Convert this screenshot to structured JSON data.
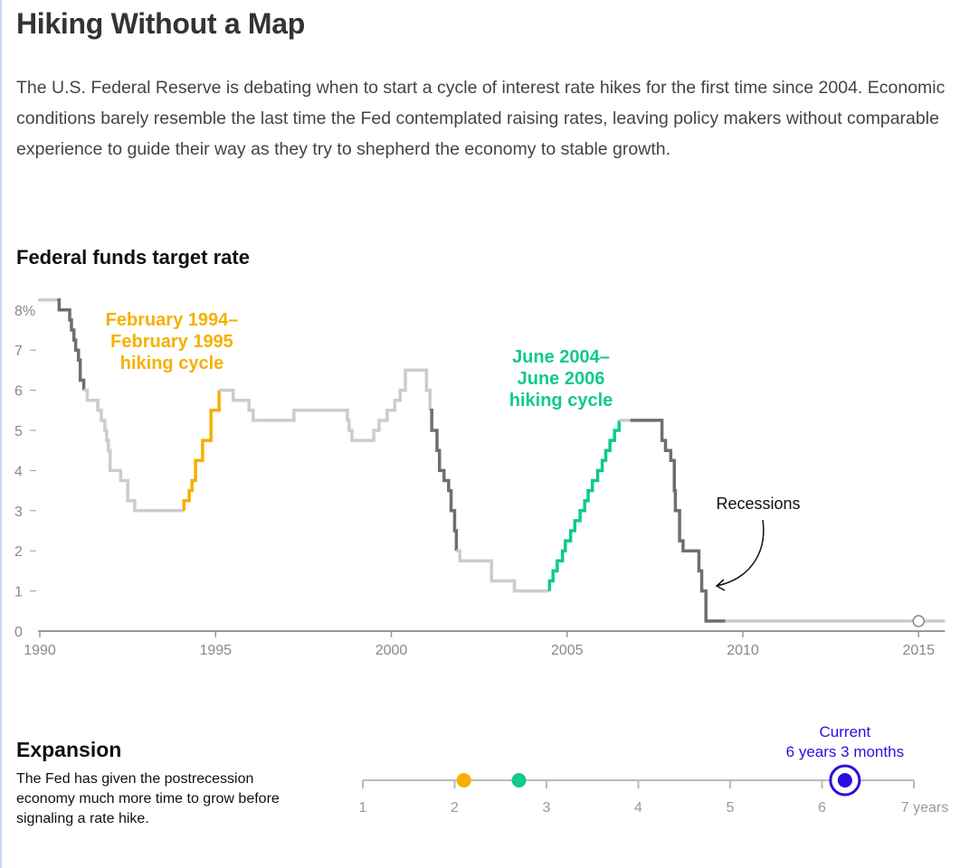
{
  "headline": "Hiking Without a Map",
  "dek": "The U.S. Federal Reserve is debating when to start a cycle of interest rate hikes for the first time since 2004. Economic conditions barely resemble the last time the Fed contemplated raising rates, leaving policy makers without comparable experience to guide their way as they try to shepherd the economy to stable growth.",
  "colors": {
    "normal": "#cccccc",
    "recession": "#6e6e6e",
    "hike_1994": "#f5b000",
    "hike_2004": "#10c98f",
    "current": "#2a0ee0",
    "axis": "#999999"
  },
  "chart_data": [
    {
      "type": "line",
      "step": true,
      "title": "Federal funds target rate",
      "xlim": [
        1990,
        2015.75
      ],
      "ylim": [
        0,
        8.25
      ],
      "x_ticks": [
        "1990",
        "1995",
        "2000",
        "2005",
        "2010",
        "2015"
      ],
      "y_ticks": [
        "0",
        "1",
        "2",
        "3",
        "4",
        "5",
        "6",
        "7",
        "8%"
      ],
      "annotations": [
        {
          "text_lines": [
            "February 1994–",
            "February 1995",
            "hiking cycle"
          ],
          "color": "hike_1994"
        },
        {
          "text_lines": [
            "June 2004–",
            "June 2006",
            "hiking cycle"
          ],
          "color": "hike_2004"
        },
        {
          "text_lines": [
            "Recessions"
          ],
          "color": "recession"
        }
      ],
      "segments": [
        {
          "style": "normal",
          "points": [
            [
              1989.95,
              8.25
            ],
            [
              1990.5,
              8.25
            ]
          ]
        },
        {
          "style": "recession",
          "points": [
            [
              1990.5,
              8.25
            ],
            [
              1990.55,
              8.0
            ],
            [
              1990.85,
              7.75
            ],
            [
              1990.9,
              7.5
            ],
            [
              1990.97,
              7.25
            ],
            [
              1991.02,
              7.0
            ],
            [
              1991.1,
              6.75
            ],
            [
              1991.15,
              6.25
            ],
            [
              1991.25,
              6.0
            ]
          ]
        },
        {
          "style": "normal",
          "points": [
            [
              1991.25,
              6.0
            ],
            [
              1991.35,
              5.75
            ],
            [
              1991.65,
              5.5
            ],
            [
              1991.75,
              5.25
            ],
            [
              1991.85,
              5.0
            ],
            [
              1991.9,
              4.75
            ],
            [
              1991.95,
              4.5
            ],
            [
              1992.0,
              4.0
            ],
            [
              1992.3,
              3.75
            ],
            [
              1992.5,
              3.25
            ],
            [
              1992.7,
              3.0
            ],
            [
              1994.1,
              3.0
            ]
          ]
        },
        {
          "style": "hike_1994",
          "points": [
            [
              1994.1,
              3.0
            ],
            [
              1994.1,
              3.25
            ],
            [
              1994.25,
              3.5
            ],
            [
              1994.33,
              3.75
            ],
            [
              1994.43,
              4.25
            ],
            [
              1994.63,
              4.75
            ],
            [
              1994.87,
              5.5
            ],
            [
              1995.1,
              6.0
            ]
          ]
        },
        {
          "style": "normal",
          "points": [
            [
              1995.1,
              6.0
            ],
            [
              1995.5,
              5.75
            ],
            [
              1995.95,
              5.5
            ],
            [
              1996.07,
              5.25
            ],
            [
              1997.23,
              5.5
            ],
            [
              1998.75,
              5.25
            ],
            [
              1998.8,
              5.0
            ],
            [
              1998.88,
              4.75
            ],
            [
              1999.5,
              5.0
            ],
            [
              1999.65,
              5.25
            ],
            [
              1999.88,
              5.5
            ],
            [
              2000.1,
              5.75
            ],
            [
              2000.25,
              6.0
            ],
            [
              2000.4,
              6.5
            ],
            [
              2001.0,
              6.0
            ],
            [
              2001.1,
              5.5
            ]
          ]
        },
        {
          "style": "recession",
          "points": [
            [
              2001.1,
              5.5
            ],
            [
              2001.15,
              5.0
            ],
            [
              2001.3,
              4.5
            ],
            [
              2001.37,
              4.0
            ],
            [
              2001.5,
              3.75
            ],
            [
              2001.63,
              3.5
            ],
            [
              2001.7,
              3.0
            ],
            [
              2001.8,
              2.5
            ],
            [
              2001.85,
              2.0
            ]
          ]
        },
        {
          "style": "normal",
          "points": [
            [
              2001.85,
              2.0
            ],
            [
              2001.95,
              1.75
            ],
            [
              2002.85,
              1.25
            ],
            [
              2003.5,
              1.0
            ],
            [
              2004.5,
              1.0
            ]
          ]
        },
        {
          "style": "hike_2004",
          "points": [
            [
              2004.5,
              1.0
            ],
            [
              2004.5,
              1.25
            ],
            [
              2004.6,
              1.5
            ],
            [
              2004.72,
              1.75
            ],
            [
              2004.87,
              2.0
            ],
            [
              2004.95,
              2.25
            ],
            [
              2005.1,
              2.5
            ],
            [
              2005.22,
              2.75
            ],
            [
              2005.37,
              3.0
            ],
            [
              2005.5,
              3.25
            ],
            [
              2005.6,
              3.5
            ],
            [
              2005.72,
              3.75
            ],
            [
              2005.87,
              4.0
            ],
            [
              2006.0,
              4.25
            ],
            [
              2006.1,
              4.5
            ],
            [
              2006.22,
              4.75
            ],
            [
              2006.35,
              5.0
            ],
            [
              2006.48,
              5.25
            ]
          ]
        },
        {
          "style": "normal",
          "points": [
            [
              2006.48,
              5.25
            ],
            [
              2006.8,
              5.25
            ]
          ]
        },
        {
          "style": "recession",
          "points": [
            [
              2006.8,
              5.25
            ],
            [
              2007.65,
              5.25
            ],
            [
              2007.7,
              4.75
            ],
            [
              2007.8,
              4.5
            ],
            [
              2007.95,
              4.25
            ],
            [
              2008.05,
              3.5
            ],
            [
              2008.08,
              3.0
            ],
            [
              2008.2,
              2.25
            ],
            [
              2008.3,
              2.0
            ],
            [
              2008.75,
              1.5
            ],
            [
              2008.83,
              1.0
            ],
            [
              2008.95,
              0.25
            ],
            [
              2009.5,
              0.25
            ]
          ]
        },
        {
          "style": "normal",
          "points": [
            [
              2009.5,
              0.25
            ],
            [
              2015.75,
              0.25
            ]
          ]
        }
      ],
      "marker": {
        "x": 2015.0,
        "y": 0.25
      }
    },
    {
      "type": "scatter",
      "title": "Expansion",
      "xlim": [
        1,
        7
      ],
      "x_ticks": [
        "1",
        "2",
        "3",
        "4",
        "5",
        "6",
        "7 years"
      ],
      "points": [
        {
          "x": 2.1,
          "color": "hike_1994"
        },
        {
          "x": 2.7,
          "color": "hike_2004"
        },
        {
          "x": 6.25,
          "color": "current",
          "label_lines": [
            "Current",
            "6 years 3 months"
          ]
        }
      ]
    }
  ],
  "expansion": {
    "title": "Expansion",
    "text": "The Fed has given the postrecession economy much more time to grow before signaling a rate hike."
  }
}
